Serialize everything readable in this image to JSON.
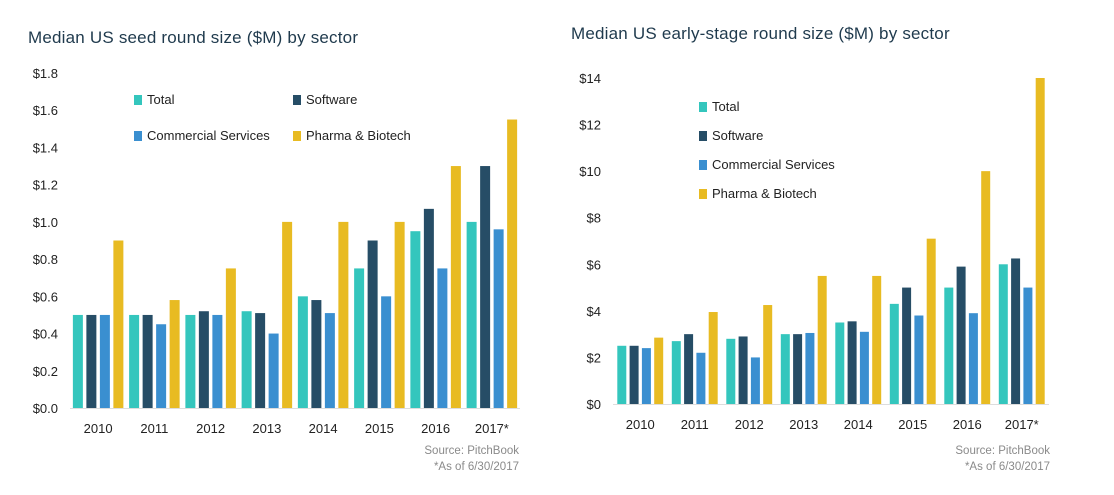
{
  "colors": {
    "Total": "#34c6bd",
    "Software": "#264d66",
    "Commercial Services": "#3a8fd0",
    "Pharma & Biotech": "#e8bb22",
    "axis_text": "#222222",
    "title_text": "#1f3a4d",
    "source_text": "#8a8a8a"
  },
  "chart_data": [
    {
      "type": "bar",
      "title": "Median US seed round size ($M) by sector",
      "xlabel": "",
      "ylabel": "",
      "ylim": [
        0,
        1.8
      ],
      "yticks": [
        "$0.0",
        "$0.2",
        "$0.4",
        "$0.6",
        "$0.8",
        "$1.0",
        "$1.2",
        "$1.4",
        "$1.6",
        "$1.8"
      ],
      "categories": [
        "2010",
        "2011",
        "2012",
        "2013",
        "2014",
        "2015",
        "2016",
        "2017*"
      ],
      "legend_placement": "top-left, inside plot",
      "grid": false,
      "series": [
        {
          "name": "Total",
          "values": [
            0.5,
            0.5,
            0.5,
            0.52,
            0.6,
            0.75,
            0.95,
            1.0
          ]
        },
        {
          "name": "Software",
          "values": [
            0.5,
            0.5,
            0.52,
            0.51,
            0.58,
            0.9,
            1.07,
            1.3
          ]
        },
        {
          "name": "Commercial Services",
          "values": [
            0.5,
            0.45,
            0.5,
            0.4,
            0.51,
            0.6,
            0.75,
            0.96
          ]
        },
        {
          "name": "Pharma & Biotech",
          "values": [
            0.9,
            0.58,
            0.75,
            1.0,
            1.0,
            1.0,
            1.3,
            1.55
          ]
        }
      ],
      "source": "Source: PitchBook",
      "note": "*As of 6/30/2017"
    },
    {
      "type": "bar",
      "title": "Median US early-stage round size ($M) by sector",
      "xlabel": "",
      "ylabel": "",
      "ylim": [
        0,
        14
      ],
      "yticks": [
        "$0",
        "$2",
        "$4",
        "$6",
        "$8",
        "$10",
        "$12",
        "$14"
      ],
      "categories": [
        "2010",
        "2011",
        "2012",
        "2013",
        "2014",
        "2015",
        "2016",
        "2017*"
      ],
      "legend_placement": "top-left, inside plot",
      "grid": false,
      "series": [
        {
          "name": "Total",
          "values": [
            2.5,
            2.7,
            2.8,
            3.0,
            3.5,
            4.3,
            5.0,
            6.0
          ]
        },
        {
          "name": "Software",
          "values": [
            2.5,
            3.0,
            2.9,
            3.0,
            3.55,
            5.0,
            5.9,
            6.25
          ]
        },
        {
          "name": "Commercial Services",
          "values": [
            2.4,
            2.2,
            2.0,
            3.05,
            3.1,
            3.8,
            3.9,
            5.0
          ]
        },
        {
          "name": "Pharma & Biotech",
          "values": [
            2.85,
            3.95,
            4.25,
            5.5,
            5.5,
            7.1,
            10.0,
            14.0
          ]
        }
      ],
      "source": "Source: PitchBook",
      "note": "*As of 6/30/2017"
    }
  ]
}
